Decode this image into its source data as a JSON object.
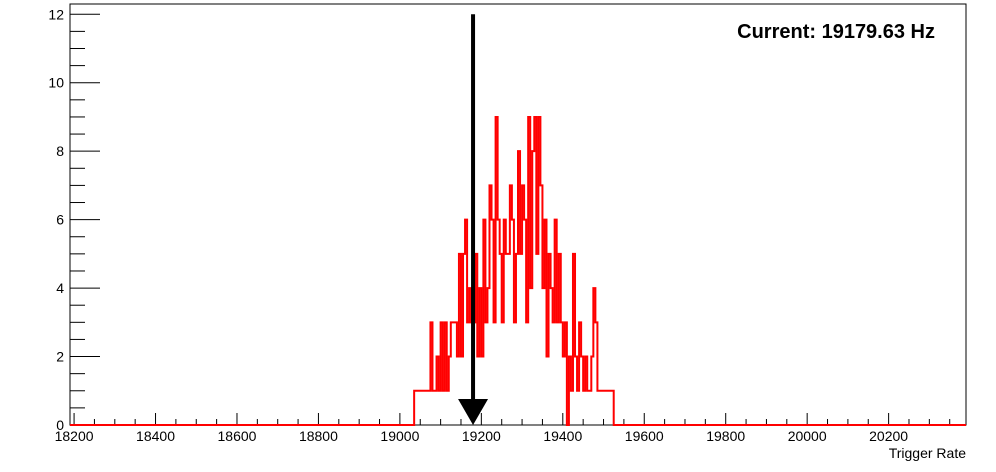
{
  "chart_data": {
    "type": "histogram",
    "title": "",
    "xlabel": "Trigger Rate",
    "ylabel": "",
    "xlim": [
      18190,
      20390
    ],
    "ylim": [
      0,
      12.3
    ],
    "x_ticks": [
      18200,
      18400,
      18600,
      18800,
      19000,
      19200,
      19400,
      19600,
      19800,
      20000,
      20200
    ],
    "y_ticks": [
      0,
      2,
      4,
      6,
      8,
      10,
      12
    ],
    "bin_width": 5,
    "hist_color": "#ff0000",
    "bins": [
      [
        19035,
        1
      ],
      [
        19040,
        1
      ],
      [
        19045,
        1
      ],
      [
        19050,
        1
      ],
      [
        19055,
        1
      ],
      [
        19060,
        1
      ],
      [
        19065,
        1
      ],
      [
        19070,
        1
      ],
      [
        19075,
        3
      ],
      [
        19080,
        1
      ],
      [
        19085,
        1
      ],
      [
        19090,
        2
      ],
      [
        19095,
        1
      ],
      [
        19100,
        3
      ],
      [
        19105,
        1
      ],
      [
        19110,
        3
      ],
      [
        19115,
        1
      ],
      [
        19120,
        2
      ],
      [
        19125,
        3
      ],
      [
        19130,
        3
      ],
      [
        19135,
        3
      ],
      [
        19140,
        2
      ],
      [
        19145,
        5
      ],
      [
        19150,
        2
      ],
      [
        19155,
        5
      ],
      [
        19160,
        6
      ],
      [
        19165,
        3
      ],
      [
        19170,
        4
      ],
      [
        19175,
        3
      ],
      [
        19180,
        3
      ],
      [
        19185,
        5
      ],
      [
        19190,
        2
      ],
      [
        19195,
        4
      ],
      [
        19200,
        2
      ],
      [
        19205,
        6
      ],
      [
        19210,
        3
      ],
      [
        19215,
        4
      ],
      [
        19220,
        7
      ],
      [
        19225,
        6
      ],
      [
        19230,
        3
      ],
      [
        19235,
        9
      ],
      [
        19240,
        6
      ],
      [
        19245,
        5
      ],
      [
        19250,
        3
      ],
      [
        19255,
        6
      ],
      [
        19260,
        5
      ],
      [
        19265,
        5
      ],
      [
        19270,
        7
      ],
      [
        19275,
        6
      ],
      [
        19280,
        3
      ],
      [
        19285,
        5
      ],
      [
        19290,
        8
      ],
      [
        19295,
        5
      ],
      [
        19300,
        7
      ],
      [
        19305,
        6
      ],
      [
        19310,
        3
      ],
      [
        19315,
        9
      ],
      [
        19320,
        4
      ],
      [
        19325,
        8
      ],
      [
        19330,
        9
      ],
      [
        19335,
        5
      ],
      [
        19340,
        9
      ],
      [
        19345,
        7
      ],
      [
        19350,
        4
      ],
      [
        19355,
        6
      ],
      [
        19360,
        2
      ],
      [
        19365,
        5
      ],
      [
        19370,
        4
      ],
      [
        19375,
        3
      ],
      [
        19380,
        6
      ],
      [
        19385,
        3
      ],
      [
        19390,
        5
      ],
      [
        19395,
        3
      ],
      [
        19400,
        2
      ],
      [
        19405,
        3
      ],
      [
        19410,
        0
      ],
      [
        19415,
        2
      ],
      [
        19420,
        1
      ],
      [
        19425,
        5
      ],
      [
        19430,
        2
      ],
      [
        19435,
        1
      ],
      [
        19440,
        3
      ],
      [
        19445,
        2
      ],
      [
        19450,
        1
      ],
      [
        19455,
        2
      ],
      [
        19460,
        1
      ],
      [
        19465,
        1
      ],
      [
        19470,
        2
      ],
      [
        19475,
        4
      ],
      [
        19480,
        3
      ],
      [
        19485,
        1
      ],
      [
        19490,
        1
      ],
      [
        19495,
        1
      ],
      [
        19500,
        1
      ],
      [
        19505,
        1
      ],
      [
        19510,
        1
      ],
      [
        19515,
        1
      ],
      [
        19520,
        1
      ],
      [
        19525,
        0
      ]
    ],
    "marker": {
      "x": 19179.63,
      "y_top": 12
    },
    "annotation": "Current: 19179.63 Hz"
  }
}
